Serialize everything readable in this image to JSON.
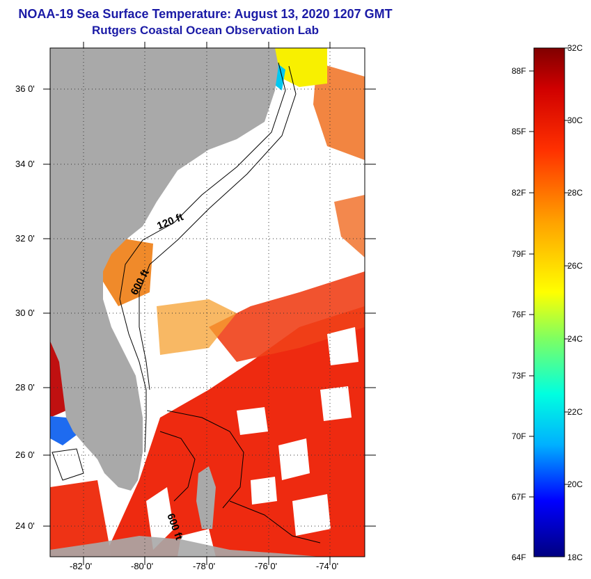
{
  "title": {
    "line1": "NOAA-19 Sea Surface Temperature:  August 13, 2020 1207 GMT",
    "line2": "Rutgers Coastal Ocean Observation Lab"
  },
  "map": {
    "lon_labels": [
      "-82 0'",
      "-80 0'",
      "-78 0'",
      "-76 0'",
      "-74 0'"
    ],
    "lat_labels": [
      "36 0'",
      "34 0'",
      "32 0'",
      "30 0'",
      "28 0'",
      "26 0'",
      "24 0'"
    ],
    "contour_labels": [
      "120 ft",
      "600 ft",
      "600 ft"
    ],
    "colors": {
      "land": "#a9a9a9",
      "cloud": "#ffffff",
      "frame": "#000000"
    }
  },
  "colorbar": {
    "fahrenheit_labels": [
      "88F",
      "85F",
      "82F",
      "79F",
      "76F",
      "73F",
      "70F",
      "67F",
      "64F"
    ],
    "celsius_labels": [
      "32C",
      "30C",
      "28C",
      "26C",
      "24C",
      "22C",
      "20C",
      "18C"
    ],
    "colors": [
      "#000080",
      "#0000ff",
      "#00b0ff",
      "#00ffe0",
      "#80ff60",
      "#ffff00",
      "#ffa000",
      "#ff3000",
      "#d00000",
      "#800000"
    ]
  }
}
